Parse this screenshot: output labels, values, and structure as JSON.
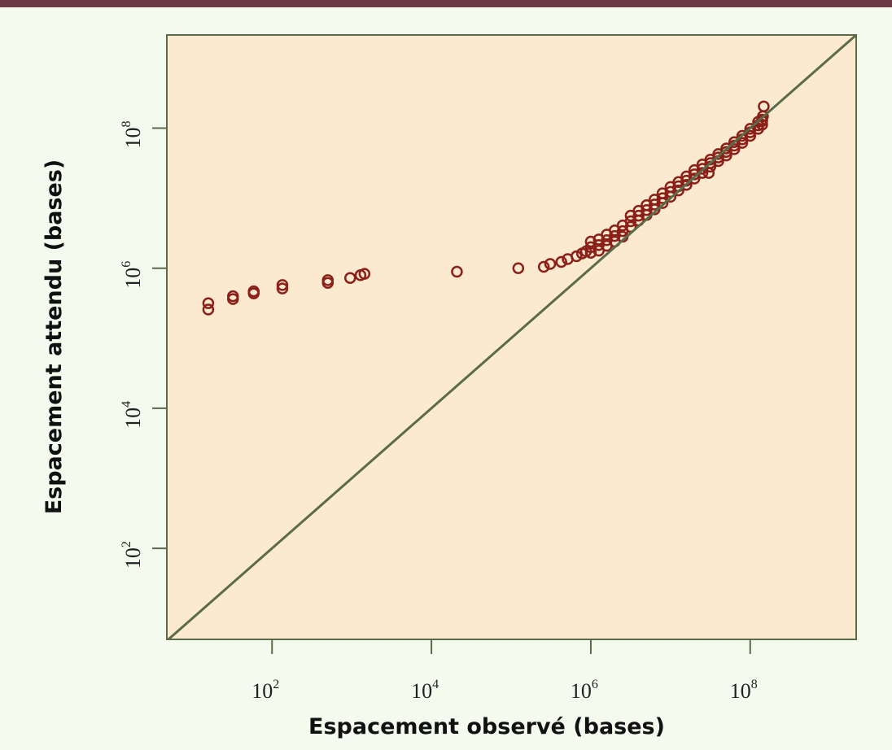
{
  "chart_data": {
    "type": "scatter",
    "title": "",
    "xlabel": "Espacement observé (bases)",
    "ylabel": "Espacement attendu (bases)",
    "x_scale": "log10",
    "y_scale": "log10",
    "xlim_log10": [
      0.68,
      9.33
    ],
    "ylim_log10": [
      0.7,
      9.33
    ],
    "x_ticks": [
      {
        "exp": 2,
        "base": "10",
        "sup": "2"
      },
      {
        "exp": 4,
        "base": "10",
        "sup": "4"
      },
      {
        "exp": 6,
        "base": "10",
        "sup": "6"
      },
      {
        "exp": 8,
        "base": "10",
        "sup": "8"
      }
    ],
    "y_ticks": [
      {
        "exp": 2,
        "base": "10",
        "sup": "2"
      },
      {
        "exp": 4,
        "base": "10",
        "sup": "4"
      },
      {
        "exp": 6,
        "base": "10",
        "sup": "6"
      },
      {
        "exp": 8,
        "base": "10",
        "sup": "8"
      }
    ],
    "grid": false,
    "reference_line": "y = x",
    "colors": {
      "points": "#8b2018",
      "line": "#5a6b4a",
      "plot_bg": "#fbe9d0",
      "page_bg": "#f4fbee",
      "top_bar": "#6b3a44"
    },
    "points_log10": [
      [
        1.2,
        5.5
      ],
      [
        1.2,
        5.41
      ],
      [
        1.51,
        5.6
      ],
      [
        1.51,
        5.56
      ],
      [
        1.77,
        5.67
      ],
      [
        1.77,
        5.64
      ],
      [
        2.13,
        5.76
      ],
      [
        2.13,
        5.71
      ],
      [
        2.7,
        5.83
      ],
      [
        2.7,
        5.79
      ],
      [
        2.98,
        5.86
      ],
      [
        3.11,
        5.9
      ],
      [
        3.16,
        5.92
      ],
      [
        4.32,
        5.95
      ],
      [
        5.09,
        6.0
      ],
      [
        5.41,
        6.02
      ],
      [
        5.49,
        6.06
      ],
      [
        5.63,
        6.09
      ],
      [
        5.71,
        6.13
      ],
      [
        5.82,
        6.17
      ],
      [
        5.89,
        6.21
      ],
      [
        5.94,
        6.24
      ],
      [
        6.0,
        6.22
      ],
      [
        6.0,
        6.3
      ],
      [
        6.0,
        6.38
      ],
      [
        6.1,
        6.25
      ],
      [
        6.1,
        6.33
      ],
      [
        6.1,
        6.41
      ],
      [
        6.2,
        6.32
      ],
      [
        6.2,
        6.4
      ],
      [
        6.2,
        6.48
      ],
      [
        6.3,
        6.38
      ],
      [
        6.3,
        6.46
      ],
      [
        6.3,
        6.54
      ],
      [
        6.4,
        6.45
      ],
      [
        6.4,
        6.53
      ],
      [
        6.4,
        6.61
      ],
      [
        6.5,
        6.59
      ],
      [
        6.5,
        6.67
      ],
      [
        6.5,
        6.75
      ],
      [
        6.6,
        6.68
      ],
      [
        6.6,
        6.75
      ],
      [
        6.6,
        6.82
      ],
      [
        6.7,
        6.76
      ],
      [
        6.7,
        6.83
      ],
      [
        6.7,
        6.9
      ],
      [
        6.8,
        6.84
      ],
      [
        6.8,
        6.91
      ],
      [
        6.8,
        6.98
      ],
      [
        6.9,
        6.93
      ],
      [
        6.9,
        7.0
      ],
      [
        6.9,
        7.07
      ],
      [
        7.0,
        7.02
      ],
      [
        7.0,
        7.09
      ],
      [
        7.0,
        7.16
      ],
      [
        7.1,
        7.11
      ],
      [
        7.1,
        7.17
      ],
      [
        7.1,
        7.23
      ],
      [
        7.2,
        7.19
      ],
      [
        7.2,
        7.25
      ],
      [
        7.2,
        7.31
      ],
      [
        7.3,
        7.28
      ],
      [
        7.3,
        7.34
      ],
      [
        7.3,
        7.4
      ],
      [
        7.4,
        7.36
      ],
      [
        7.4,
        7.42
      ],
      [
        7.4,
        7.48
      ],
      [
        7.5,
        7.45
      ],
      [
        7.5,
        7.5
      ],
      [
        7.5,
        7.55
      ],
      [
        7.6,
        7.53
      ],
      [
        7.6,
        7.58
      ],
      [
        7.6,
        7.63
      ],
      [
        7.7,
        7.61
      ],
      [
        7.7,
        7.66
      ],
      [
        7.7,
        7.71
      ],
      [
        7.8,
        7.7
      ],
      [
        7.8,
        7.75
      ],
      [
        7.8,
        7.8
      ],
      [
        7.9,
        7.79
      ],
      [
        7.9,
        7.84
      ],
      [
        7.9,
        7.89
      ],
      [
        8.0,
        7.89
      ],
      [
        8.0,
        7.94
      ],
      [
        8.0,
        7.99
      ],
      [
        8.1,
        7.99
      ],
      [
        8.1,
        8.04
      ],
      [
        8.1,
        8.09
      ],
      [
        8.15,
        8.05
      ],
      [
        8.15,
        8.1
      ],
      [
        8.15,
        8.12
      ],
      [
        7.48,
        7.36
      ],
      [
        8.16,
        8.17
      ],
      [
        8.17,
        8.31
      ]
    ]
  }
}
